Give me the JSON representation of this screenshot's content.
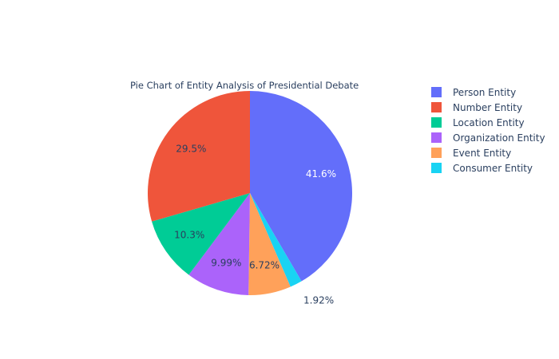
{
  "chart_data": {
    "type": "pie",
    "title": "Pie Chart of Entity Analysis of Presidential Debate",
    "legend_position": "right",
    "slices": [
      {
        "label": "Person Entity",
        "value": 41.6,
        "text": "41.6%",
        "color": "#636efa",
        "text_color": "#ffffff",
        "label_outside": false
      },
      {
        "label": "Consumer Entity",
        "value": 1.92,
        "text": "1.92%",
        "color": "#19d3f3",
        "text_color": "#2a3f5f",
        "label_outside": true
      },
      {
        "label": "Event Entity",
        "value": 6.72,
        "text": "6.72%",
        "color": "#ffa15a",
        "text_color": "#2a3f5f",
        "label_outside": false
      },
      {
        "label": "Organization Entity",
        "value": 9.99,
        "text": "9.99%",
        "color": "#ab63fa",
        "text_color": "#2a3f5f",
        "label_outside": false
      },
      {
        "label": "Location Entity",
        "value": 10.3,
        "text": "10.3%",
        "color": "#00cc96",
        "text_color": "#2a3f5f",
        "label_outside": false
      },
      {
        "label": "Number Entity",
        "value": 29.5,
        "text": "29.5%",
        "color": "#ef553b",
        "text_color": "#2a3f5f",
        "label_outside": false
      }
    ],
    "legend": [
      {
        "label": "Person Entity",
        "color": "#636efa"
      },
      {
        "label": "Number Entity",
        "color": "#ef553b"
      },
      {
        "label": "Location Entity",
        "color": "#00cc96"
      },
      {
        "label": "Organization Entity",
        "color": "#ab63fa"
      },
      {
        "label": "Event Entity",
        "color": "#ffa15a"
      },
      {
        "label": "Consumer Entity",
        "color": "#19d3f3"
      }
    ]
  }
}
